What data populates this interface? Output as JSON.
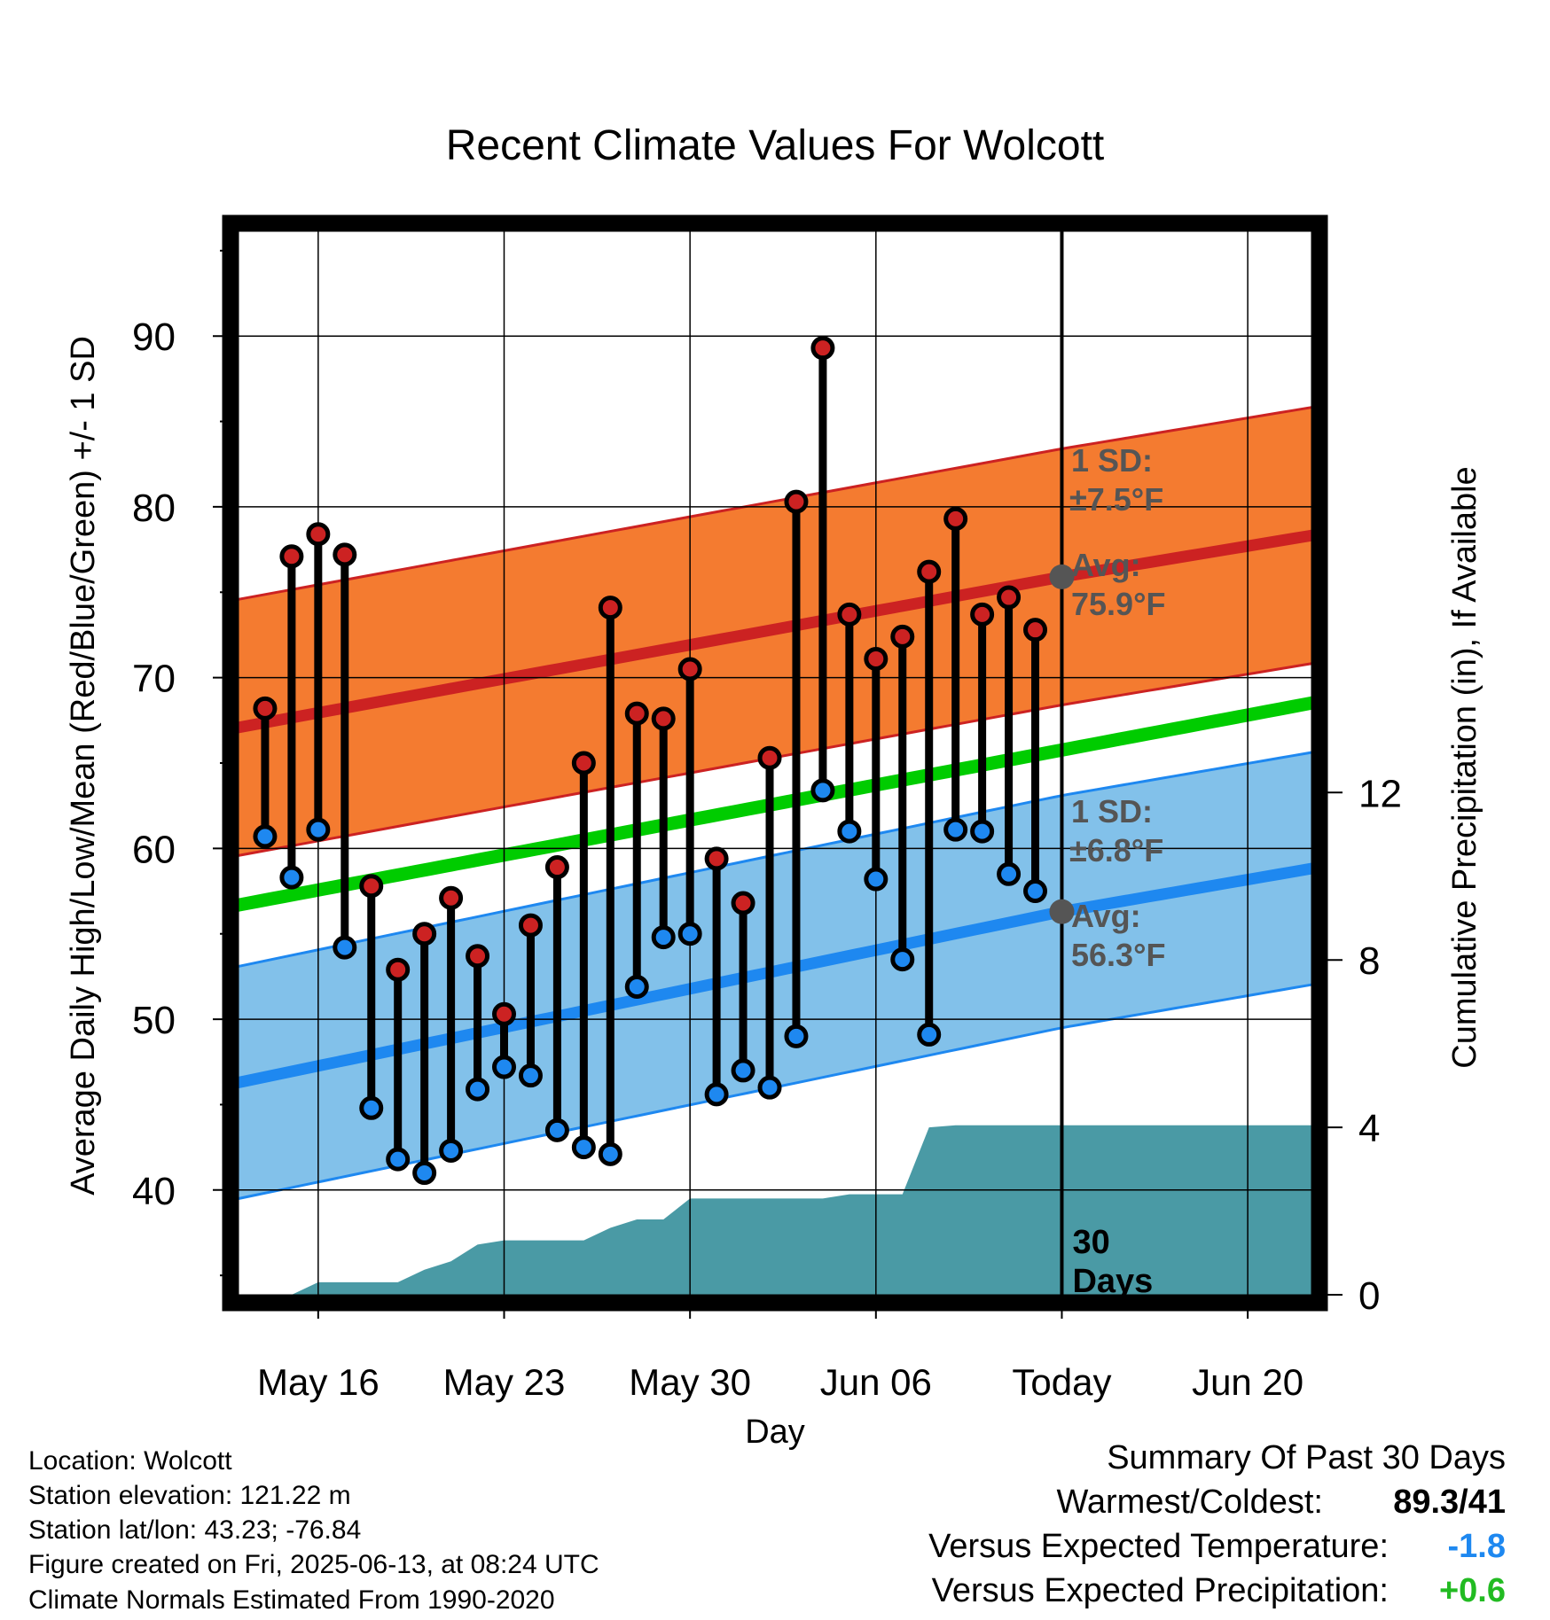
{
  "chart_data": {
    "type": "line",
    "title": "Recent Climate Values For Wolcott",
    "xlabel": "Day",
    "ylabel": "Average Daily High/Low/Mean (Red/Blue/Green) +/- 1 SD",
    "y2label": "Cumulative Precipitation (in), If Available",
    "x_ticks": [
      "May 16",
      "May 23",
      "May 30",
      "Jun 06",
      "Today",
      "Jun 20"
    ],
    "x_tick_days": [
      16,
      23,
      30,
      37,
      44,
      51
    ],
    "x_range_days": [
      12.7,
      53.7
    ],
    "today_day": 44,
    "today_label": "30 Days",
    "ylim": [
      33.4,
      96.6
    ],
    "yticks": [
      40,
      50,
      60,
      70,
      80,
      90
    ],
    "y2lim": [
      -0.19,
      25.6
    ],
    "y2ticks": [
      0,
      4,
      8,
      12
    ],
    "grid": true,
    "normals": {
      "high_mean": [
        [
          12.7,
          67.0
        ],
        [
          44,
          75.9
        ],
        [
          53.7,
          78.4
        ]
      ],
      "high_sd": 7.5,
      "low_mean": [
        [
          12.7,
          46.2
        ],
        [
          44,
          56.3
        ],
        [
          53.7,
          58.9
        ]
      ],
      "low_sd": 6.8,
      "daily_mean": [
        [
          12.7,
          56.6
        ],
        [
          53.7,
          68.6
        ]
      ],
      "high_color": "#cc2222",
      "high_band_color": "#f47b30",
      "low_color": "#1e88f0",
      "low_band_color": "#82c1ea",
      "mean_color": "#00cc00",
      "precip_color": "#4a9aa5",
      "marker_avg_color": "#555555"
    },
    "annotations": {
      "high_sd_label": "1 SD:",
      "high_sd_value": "±7.5°F",
      "high_avg_label": "Avg:",
      "high_avg_value": "75.9°F",
      "low_sd_label": "1 SD:",
      "low_sd_value": "±6.8°F",
      "low_avg_label": "Avg:",
      "low_avg_value": "56.3°F"
    },
    "series": [
      {
        "name": "High",
        "x": [
          14,
          15,
          16,
          17,
          18,
          19,
          20,
          21,
          22,
          23,
          24,
          25,
          26,
          27,
          28,
          29,
          30,
          31,
          32,
          33,
          34,
          35,
          36,
          37,
          38,
          39,
          40,
          41,
          42,
          43
        ],
        "values": [
          68.2,
          77.1,
          78.4,
          77.2,
          57.8,
          52.9,
          55.0,
          57.1,
          53.7,
          50.3,
          55.5,
          58.9,
          65.0,
          74.1,
          67.9,
          67.6,
          70.5,
          59.4,
          56.8,
          65.3,
          80.3,
          89.3,
          73.7,
          71.1,
          72.4,
          76.2,
          79.3,
          73.7,
          74.7,
          72.8
        ],
        "color": "#cc2222"
      },
      {
        "name": "Low",
        "x": [
          14,
          15,
          16,
          17,
          18,
          19,
          20,
          21,
          22,
          23,
          24,
          25,
          26,
          27,
          28,
          29,
          30,
          31,
          32,
          33,
          34,
          35,
          36,
          37,
          38,
          39,
          40,
          41,
          42,
          43
        ],
        "values": [
          60.7,
          58.3,
          61.1,
          54.2,
          44.8,
          41.8,
          41.0,
          42.3,
          45.9,
          47.2,
          46.7,
          43.5,
          42.5,
          42.1,
          51.9,
          54.8,
          55.0,
          45.6,
          47.0,
          46.0,
          49.0,
          63.4,
          61.0,
          58.2,
          53.5,
          49.1,
          61.1,
          61.0,
          58.5,
          57.5
        ],
        "color": "#1e88f0"
      },
      {
        "name": "Precipitation",
        "x": [
          15,
          16,
          17,
          18,
          19,
          20,
          21,
          22,
          23,
          24,
          25,
          26,
          27,
          28,
          29,
          30,
          31,
          32,
          33,
          34,
          35,
          36,
          37,
          38,
          39,
          40,
          41,
          42,
          43,
          44,
          53.7
        ],
        "values": [
          0,
          0.3,
          0.3,
          0.3,
          0.3,
          0.6,
          0.8,
          1.2,
          1.3,
          1.3,
          1.3,
          1.3,
          1.6,
          1.8,
          1.8,
          2.3,
          2.3,
          2.3,
          2.3,
          2.3,
          2.3,
          2.4,
          2.4,
          2.4,
          4.0,
          4.05,
          4.05,
          4.05,
          4.05,
          4.05,
          4.05
        ],
        "color": "#4a9aa5"
      }
    ]
  },
  "info": {
    "location": "Location: Wolcott",
    "elevation": "Station elevation: 121.22 m",
    "latlon": "Station lat/lon: 43.23; -76.84",
    "created": "Figure created on Fri, 2025-06-13, at 08:24 UTC",
    "normals": "Climate Normals Estimated From 1990-2020"
  },
  "summary": {
    "title": "Summary Of Past 30 Days",
    "warm_cold_label": "Warmest/Coldest:",
    "warm_cold_value": "89.3/41",
    "temp_label": "Versus Expected Temperature:",
    "temp_value": "-1.8",
    "temp_color": "#1e88f0",
    "precip_label": "Versus Expected Precipitation:",
    "precip_value": "+0.6",
    "precip_color": "#22bb22"
  }
}
